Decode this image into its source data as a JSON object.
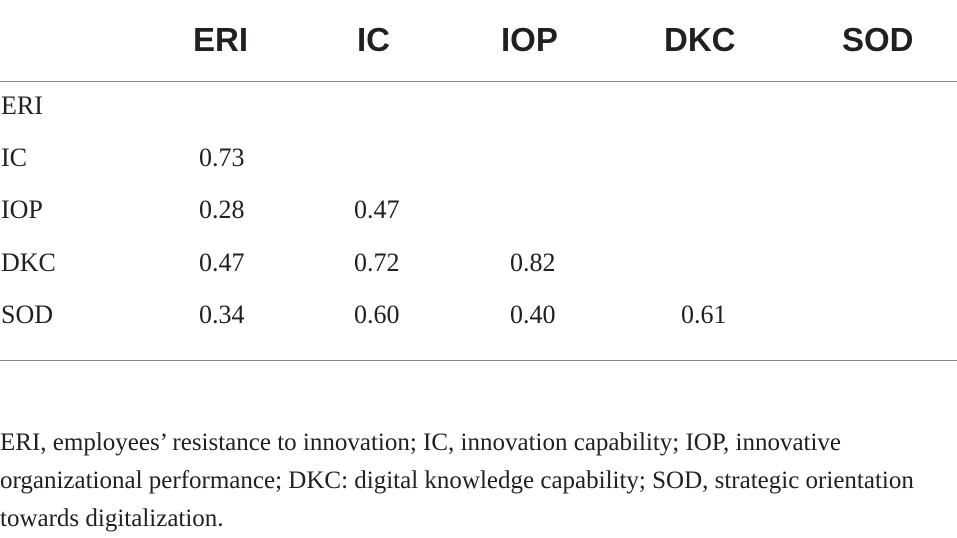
{
  "table": {
    "columns": [
      "",
      "ERI",
      "IC",
      "IOP",
      "DKC",
      "SOD"
    ],
    "rows": [
      {
        "label": "ERI",
        "values": [
          "",
          "",
          "",
          "",
          ""
        ]
      },
      {
        "label": "IC",
        "values": [
          "0.73",
          "",
          "",
          "",
          ""
        ]
      },
      {
        "label": "IOP",
        "values": [
          "0.28",
          "0.47",
          "",
          "",
          ""
        ]
      },
      {
        "label": "DKC",
        "values": [
          "0.47",
          "0.72",
          "0.82",
          "",
          ""
        ]
      },
      {
        "label": "SOD",
        "values": [
          "0.34",
          "0.60",
          "0.40",
          "0.61",
          ""
        ]
      }
    ]
  },
  "footnote": "ERI, employees’ resistance to innovation; IC, innovation capability; IOP, innovative organizational performance; DKC: digital knowledge capability; SOD, strategic orientation towards digitalization."
}
